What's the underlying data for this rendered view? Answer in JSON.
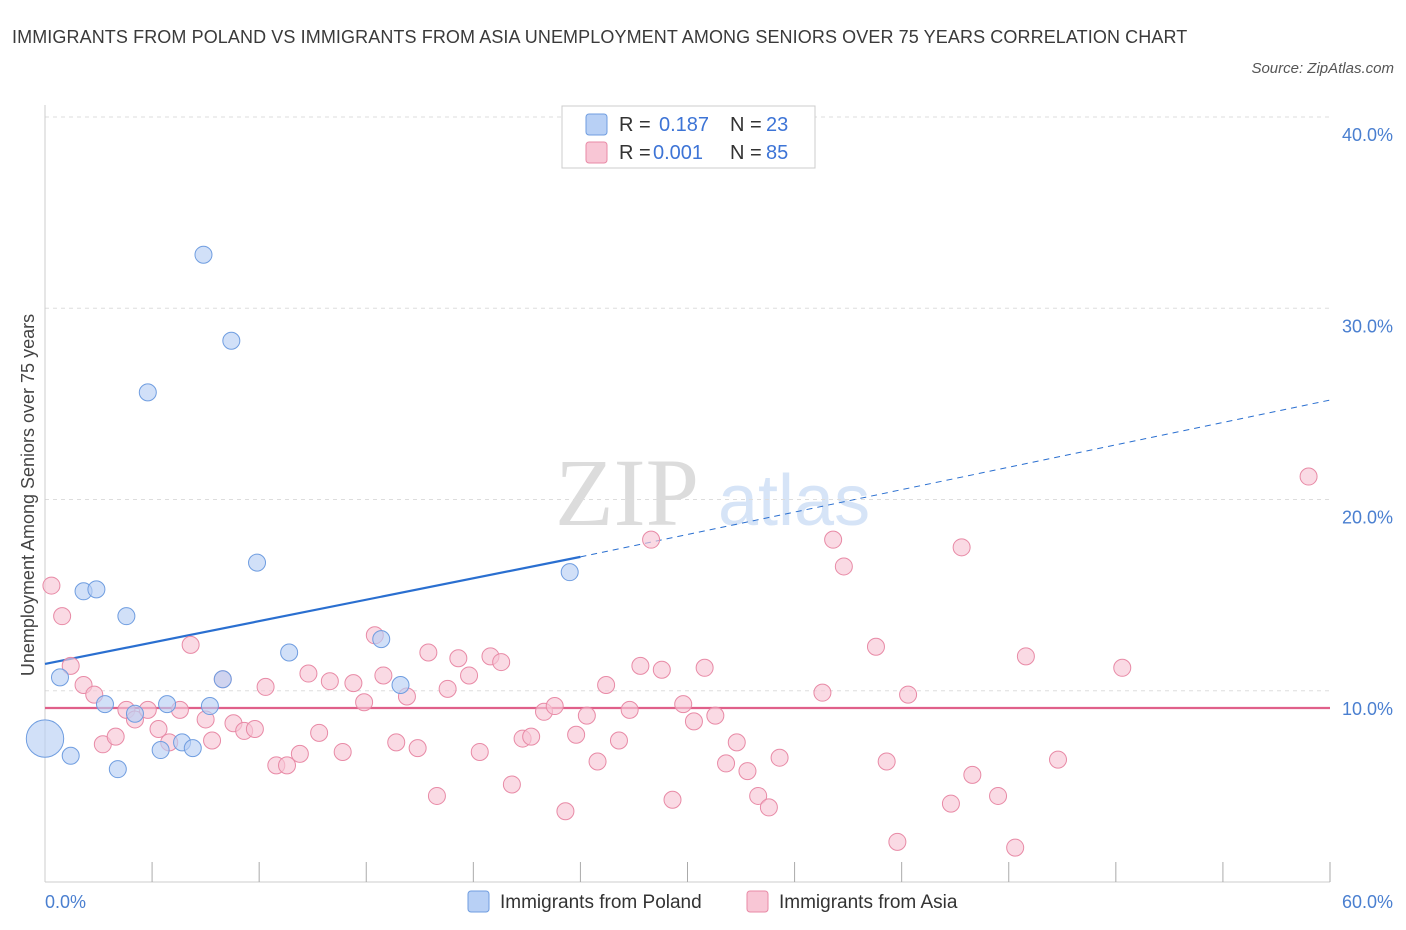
{
  "header": {
    "title": "IMMIGRANTS FROM POLAND VS IMMIGRANTS FROM ASIA UNEMPLOYMENT AMONG SENIORS OVER 75 YEARS CORRELATION CHART",
    "source": "Source: ZipAtlas.com"
  },
  "watermark": {
    "zip": "ZIP",
    "atlas": "atlas"
  },
  "legend": {
    "r_label": "R =",
    "n_label": "N =",
    "poland": {
      "r": "0.187",
      "n": "23"
    },
    "asia": {
      "r": "0.001",
      "n": "85"
    }
  },
  "colors": {
    "poland_fill": "#b8d0f5",
    "poland_stroke": "#6f9de0",
    "poland_line": "#2a6fd0",
    "asia_fill": "#f8c6d5",
    "asia_stroke": "#e88aa6",
    "asia_line": "#e0608a",
    "grid": "#dddddd",
    "axis_text": "#4a7fd0"
  },
  "chart_data": {
    "type": "scatter",
    "title": "IMMIGRANTS FROM POLAND VS IMMIGRANTS FROM ASIA UNEMPLOYMENT AMONG SENIORS OVER 75 YEARS CORRELATION CHART",
    "xlabel": "",
    "ylabel": "Unemployment Among Seniors over 75 years",
    "xlim": [
      0,
      60
    ],
    "ylim": [
      0,
      40
    ],
    "x_ticks": [
      {
        "v": 0,
        "label": "0.0%"
      },
      {
        "v": 60,
        "label": "60.0%"
      }
    ],
    "y_ticks": [
      {
        "v": 10,
        "label": "10.0%"
      },
      {
        "v": 20,
        "label": "20.0%"
      },
      {
        "v": 30,
        "label": "30.0%"
      },
      {
        "v": 40,
        "label": "40.0%"
      }
    ],
    "legend_position": "bottom",
    "series": [
      {
        "name": "Immigrants from Poland",
        "points": [
          [
            0.0,
            7.5,
            2.2
          ],
          [
            0.7,
            10.7,
            1
          ],
          [
            1.2,
            6.6,
            1
          ],
          [
            1.8,
            15.2,
            1
          ],
          [
            2.4,
            15.3,
            1
          ],
          [
            2.8,
            9.3,
            1
          ],
          [
            3.4,
            5.9,
            1
          ],
          [
            3.8,
            13.9,
            1
          ],
          [
            4.2,
            8.8,
            1
          ],
          [
            4.8,
            25.6,
            1
          ],
          [
            5.4,
            6.9,
            1
          ],
          [
            5.7,
            9.3,
            1
          ],
          [
            6.4,
            7.3,
            1
          ],
          [
            6.9,
            7.0,
            1
          ],
          [
            7.4,
            32.8,
            1
          ],
          [
            7.7,
            9.2,
            1
          ],
          [
            8.3,
            10.6,
            1
          ],
          [
            8.7,
            28.3,
            1
          ],
          [
            9.9,
            16.7,
            1
          ],
          [
            11.4,
            12.0,
            1
          ],
          [
            15.7,
            12.7,
            1
          ],
          [
            16.6,
            10.3,
            1
          ],
          [
            24.5,
            16.2,
            1
          ]
        ],
        "trend": {
          "x0": 0,
          "y0": 11.4,
          "x_solid_end": 25,
          "y_solid_end": 17.0,
          "x1": 60,
          "y1": 25.2
        }
      },
      {
        "name": "Immigrants from Asia",
        "points": [
          [
            0.3,
            15.5
          ],
          [
            0.8,
            13.9
          ],
          [
            1.2,
            11.3
          ],
          [
            1.8,
            10.3
          ],
          [
            2.3,
            9.8
          ],
          [
            2.7,
            7.2
          ],
          [
            3.3,
            7.6
          ],
          [
            3.8,
            9.0
          ],
          [
            4.2,
            8.5
          ],
          [
            4.8,
            9.0
          ],
          [
            5.3,
            8.0
          ],
          [
            5.8,
            7.3
          ],
          [
            6.3,
            9.0
          ],
          [
            6.8,
            12.4
          ],
          [
            7.5,
            8.5
          ],
          [
            7.8,
            7.4
          ],
          [
            8.3,
            10.6
          ],
          [
            8.8,
            8.3
          ],
          [
            9.3,
            7.9
          ],
          [
            9.8,
            8.0
          ],
          [
            10.3,
            10.2
          ],
          [
            10.8,
            6.1
          ],
          [
            11.3,
            6.1
          ],
          [
            11.9,
            6.7
          ],
          [
            12.3,
            10.9
          ],
          [
            12.8,
            7.8
          ],
          [
            13.3,
            10.5
          ],
          [
            13.9,
            6.8
          ],
          [
            14.4,
            10.4
          ],
          [
            14.9,
            9.4
          ],
          [
            15.4,
            12.9
          ],
          [
            15.8,
            10.8
          ],
          [
            16.4,
            7.3
          ],
          [
            16.9,
            9.7
          ],
          [
            17.4,
            7.0
          ],
          [
            17.9,
            12.0
          ],
          [
            18.3,
            4.5
          ],
          [
            18.8,
            10.1
          ],
          [
            19.3,
            11.7
          ],
          [
            19.8,
            10.8
          ],
          [
            20.3,
            6.8
          ],
          [
            20.8,
            11.8
          ],
          [
            21.3,
            11.5
          ],
          [
            21.8,
            5.1
          ],
          [
            22.3,
            7.5
          ],
          [
            22.7,
            7.6
          ],
          [
            23.3,
            8.9
          ],
          [
            23.8,
            9.2
          ],
          [
            24.3,
            3.7
          ],
          [
            24.8,
            7.7
          ],
          [
            25.3,
            8.7
          ],
          [
            25.8,
            6.3
          ],
          [
            26.2,
            10.3
          ],
          [
            26.8,
            7.4
          ],
          [
            27.3,
            9.0
          ],
          [
            27.8,
            11.3
          ],
          [
            28.3,
            17.9
          ],
          [
            28.8,
            11.1
          ],
          [
            29.3,
            4.3
          ],
          [
            29.8,
            9.3
          ],
          [
            30.3,
            8.4
          ],
          [
            30.8,
            11.2
          ],
          [
            31.3,
            8.7
          ],
          [
            31.8,
            6.2
          ],
          [
            32.3,
            7.3
          ],
          [
            32.8,
            5.8
          ],
          [
            33.3,
            4.5
          ],
          [
            33.8,
            3.9
          ],
          [
            34.3,
            6.5
          ],
          [
            36.3,
            9.9
          ],
          [
            36.8,
            17.9
          ],
          [
            37.3,
            16.5
          ],
          [
            38.8,
            12.3
          ],
          [
            39.3,
            6.3
          ],
          [
            39.8,
            2.1
          ],
          [
            40.3,
            9.8
          ],
          [
            42.3,
            4.1
          ],
          [
            42.8,
            17.5
          ],
          [
            43.3,
            5.6
          ],
          [
            44.5,
            4.5
          ],
          [
            45.3,
            1.8
          ],
          [
            45.8,
            11.8
          ],
          [
            47.3,
            6.4
          ],
          [
            50.3,
            11.2
          ],
          [
            59.0,
            21.2
          ]
        ],
        "trend": {
          "x0": 0,
          "y0": 9.1,
          "x1": 60,
          "y1": 9.1
        }
      }
    ]
  }
}
